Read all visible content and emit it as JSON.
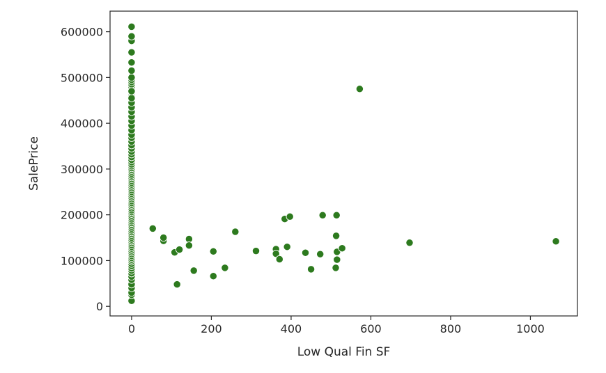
{
  "chart_data": {
    "type": "scatter",
    "title": "",
    "xlabel": "Low Qual Fin SF",
    "ylabel": "SalePrice",
    "xlim": [
      -54,
      1118
    ],
    "ylim": [
      -21000,
      645000
    ],
    "xticks": [
      0,
      200,
      400,
      600,
      800,
      1000
    ],
    "yticks": [
      0,
      100000,
      200000,
      300000,
      400000,
      500000,
      600000
    ],
    "grid": false,
    "legend": "none",
    "marker_color": "#2d7a1e",
    "marker_edge_color": "#ffffff",
    "series": [
      {
        "x": [
          0,
          0,
          0,
          0,
          0,
          0,
          0,
          0,
          0,
          0,
          0,
          0,
          0,
          0,
          0,
          0,
          0,
          0,
          0,
          0,
          0,
          0,
          0,
          0,
          0,
          0,
          0,
          0,
          0,
          0,
          0,
          0,
          0,
          0,
          0,
          0,
          0,
          0,
          0,
          0,
          0,
          0,
          0,
          0,
          0,
          0,
          0,
          0,
          0,
          0,
          0,
          0,
          0,
          0,
          0,
          0,
          0,
          0,
          0,
          0,
          0,
          0,
          0,
          0,
          0,
          0,
          0,
          0,
          0,
          0,
          0,
          0,
          0,
          0,
          0,
          0,
          0,
          0,
          0,
          0,
          0,
          0,
          0,
          0,
          0,
          0,
          0,
          0,
          0,
          0,
          0,
          0,
          0,
          0,
          0,
          0,
          0,
          0,
          0,
          0,
          0,
          0,
          0,
          0,
          0,
          0,
          0,
          0,
          0,
          0,
          0,
          0,
          0,
          0,
          0,
          0,
          0,
          0,
          0,
          0,
          0,
          0,
          0,
          0,
          0,
          0,
          0,
          0,
          0,
          0,
          0,
          0,
          0,
          0,
          0,
          0,
          0,
          0,
          0,
          0,
          0,
          0,
          0,
          0,
          0,
          0,
          0,
          0,
          0,
          0,
          0,
          0,
          0,
          0,
          0,
          0,
          0,
          0,
          0,
          0,
          0,
          0,
          0,
          0,
          0,
          0,
          0,
          0,
          0,
          0,
          0,
          0,
          0,
          0,
          0,
          0,
          0,
          0,
          0,
          0,
          0,
          0,
          0,
          0,
          0,
          0,
          0,
          0,
          0,
          0,
          0,
          0,
          0,
          0,
          0,
          0,
          0,
          0,
          0,
          0,
          0,
          53,
          80,
          80,
          108,
          114,
          120,
          144,
          144,
          156,
          205,
          205,
          234,
          260,
          312,
          362,
          362,
          371,
          384,
          390,
          397,
          436,
          450,
          473,
          479,
          512,
          513,
          514,
          515,
          515,
          528,
          572,
          697,
          1064
        ],
        "y": [
          12000,
          25000,
          35000,
          44000,
          55000,
          62000,
          68000,
          75000,
          80000,
          85000,
          90000,
          95000,
          100000,
          104000,
          108000,
          112000,
          116000,
          120000,
          124000,
          128000,
          132000,
          136000,
          140000,
          144000,
          148000,
          152000,
          156000,
          160000,
          164000,
          168000,
          172000,
          176000,
          180000,
          184000,
          188000,
          192000,
          196000,
          200000,
          204000,
          208000,
          212000,
          216000,
          220000,
          224000,
          228000,
          232000,
          236000,
          240000,
          244000,
          248000,
          252000,
          256000,
          260000,
          264000,
          268000,
          272000,
          276000,
          280000,
          284000,
          288000,
          292000,
          296000,
          300000,
          304000,
          308000,
          312000,
          316000,
          320000,
          324000,
          328000,
          332000,
          336000,
          340000,
          344000,
          348000,
          352000,
          356000,
          360000,
          364000,
          368000,
          372000,
          376000,
          380000,
          384000,
          388000,
          392000,
          396000,
          400000,
          404000,
          408000,
          412000,
          416000,
          420000,
          424000,
          428000,
          432000,
          436000,
          440000,
          444000,
          448000,
          452000,
          456000,
          460000,
          464000,
          468000,
          472000,
          476000,
          480000,
          485000,
          490000,
          495000,
          500000,
          515000,
          533000,
          555000,
          580000,
          590000,
          611000,
          30000,
          40000,
          48000,
          58000,
          65000,
          72000,
          78000,
          83000,
          88000,
          93000,
          98000,
          102000,
          106000,
          110000,
          114000,
          118000,
          122000,
          126000,
          130000,
          134000,
          138000,
          142000,
          146000,
          150000,
          154000,
          158000,
          162000,
          166000,
          170000,
          174000,
          178000,
          182000,
          186000,
          190000,
          194000,
          198000,
          202000,
          206000,
          210000,
          214000,
          218000,
          222000,
          226000,
          230000,
          234000,
          238000,
          242000,
          246000,
          250000,
          254000,
          258000,
          262000,
          266000,
          270000,
          274000,
          278000,
          282000,
          286000,
          290000,
          294000,
          298000,
          302000,
          306000,
          310000,
          315000,
          320000,
          326000,
          332000,
          338000,
          345000,
          352000,
          360000,
          368000,
          375000,
          385000,
          395000,
          405000,
          415000,
          425000,
          435000,
          445000,
          455000,
          470000,
          170000,
          143000,
          150000,
          118000,
          48000,
          124000,
          147000,
          133000,
          78000,
          66000,
          120000,
          84000,
          163000,
          121000,
          125000,
          115000,
          103000,
          191000,
          130000,
          196000,
          117000,
          81000,
          114000,
          199000,
          84000,
          154000,
          199000,
          102000,
          119000,
          127000,
          475000,
          139000,
          142000
        ]
      }
    ]
  }
}
